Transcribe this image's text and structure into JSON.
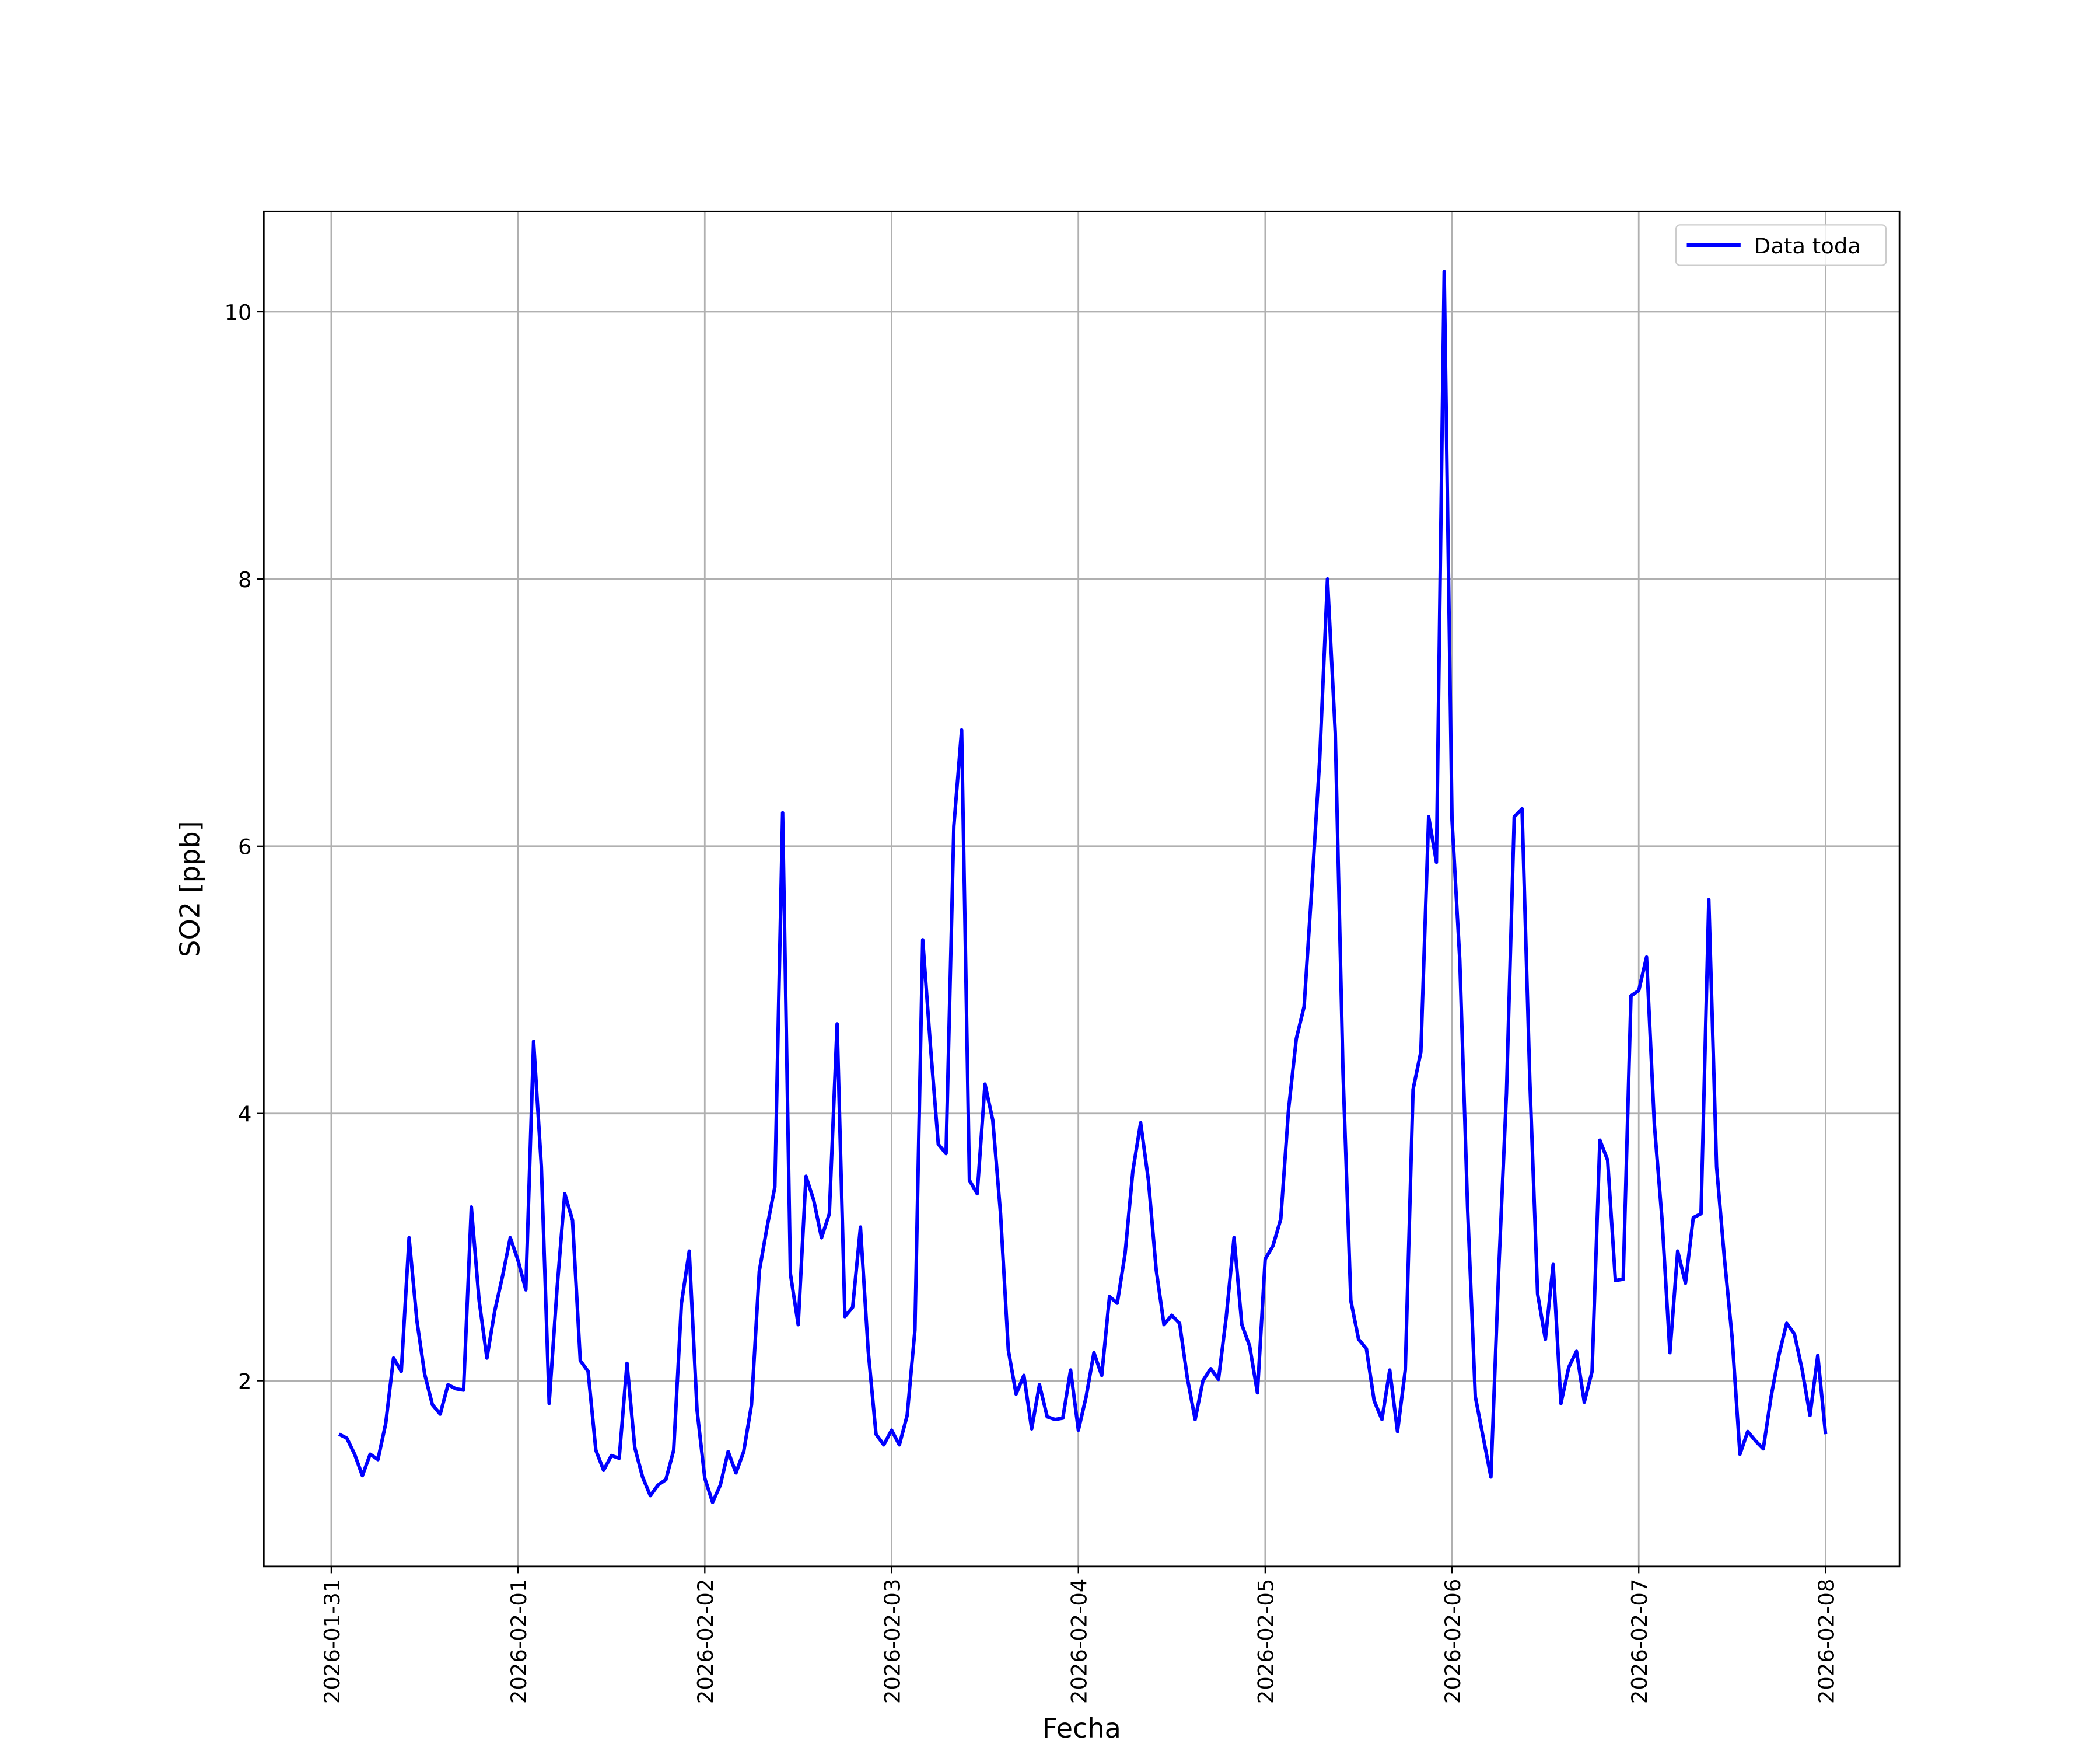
{
  "chart_data": {
    "type": "line",
    "x": [
      "2026-01-31 01:00",
      "2026-01-31 02:00",
      "2026-01-31 03:00",
      "2026-01-31 04:00",
      "2026-01-31 05:00",
      "2026-01-31 06:00",
      "2026-01-31 07:00",
      "2026-01-31 08:00",
      "2026-01-31 09:00",
      "2026-01-31 10:00",
      "2026-01-31 11:00",
      "2026-01-31 12:00",
      "2026-01-31 13:00",
      "2026-01-31 14:00",
      "2026-01-31 15:00",
      "2026-01-31 16:00",
      "2026-01-31 17:00",
      "2026-01-31 18:00",
      "2026-01-31 19:00",
      "2026-01-31 20:00",
      "2026-01-31 21:00",
      "2026-01-31 22:00",
      "2026-01-31 23:00",
      "2026-02-01 00:00",
      "2026-02-01 01:00",
      "2026-02-01 02:00",
      "2026-02-01 03:00",
      "2026-02-01 04:00",
      "2026-02-01 05:00",
      "2026-02-01 06:00",
      "2026-02-01 07:00",
      "2026-02-01 08:00",
      "2026-02-01 09:00",
      "2026-02-01 10:00",
      "2026-02-01 11:00",
      "2026-02-01 12:00",
      "2026-02-01 13:00",
      "2026-02-01 14:00",
      "2026-02-01 15:00",
      "2026-02-01 16:00",
      "2026-02-01 17:00",
      "2026-02-01 18:00",
      "2026-02-01 19:00",
      "2026-02-01 20:00",
      "2026-02-01 21:00",
      "2026-02-01 22:00",
      "2026-02-01 23:00",
      "2026-02-02 00:00",
      "2026-02-02 01:00",
      "2026-02-02 02:00",
      "2026-02-02 03:00",
      "2026-02-02 04:00",
      "2026-02-02 05:00",
      "2026-02-02 06:00",
      "2026-02-02 07:00",
      "2026-02-02 08:00",
      "2026-02-02 09:00",
      "2026-02-02 10:00",
      "2026-02-02 11:00",
      "2026-02-02 12:00",
      "2026-02-02 13:00",
      "2026-02-02 14:00",
      "2026-02-02 15:00",
      "2026-02-02 16:00",
      "2026-02-02 17:00",
      "2026-02-02 18:00",
      "2026-02-02 19:00",
      "2026-02-02 20:00",
      "2026-02-02 21:00",
      "2026-02-02 22:00",
      "2026-02-02 23:00",
      "2026-02-03 00:00",
      "2026-02-03 01:00",
      "2026-02-03 02:00",
      "2026-02-03 03:00",
      "2026-02-03 04:00",
      "2026-02-03 05:00",
      "2026-02-03 06:00",
      "2026-02-03 07:00",
      "2026-02-03 08:00",
      "2026-02-03 09:00",
      "2026-02-03 10:00",
      "2026-02-03 11:00",
      "2026-02-03 12:00",
      "2026-02-03 13:00",
      "2026-02-03 14:00",
      "2026-02-03 15:00",
      "2026-02-03 16:00",
      "2026-02-03 17:00",
      "2026-02-03 18:00",
      "2026-02-03 19:00",
      "2026-02-03 20:00",
      "2026-02-03 21:00",
      "2026-02-03 22:00",
      "2026-02-03 23:00",
      "2026-02-04 00:00",
      "2026-02-04 01:00",
      "2026-02-04 02:00",
      "2026-02-04 03:00",
      "2026-02-04 04:00",
      "2026-02-04 05:00",
      "2026-02-04 06:00",
      "2026-02-04 07:00",
      "2026-02-04 08:00",
      "2026-02-04 09:00",
      "2026-02-04 10:00",
      "2026-02-04 11:00",
      "2026-02-04 12:00",
      "2026-02-04 13:00",
      "2026-02-04 14:00",
      "2026-02-04 15:00",
      "2026-02-04 16:00",
      "2026-02-04 17:00",
      "2026-02-04 18:00",
      "2026-02-04 19:00",
      "2026-02-04 20:00",
      "2026-02-04 21:00",
      "2026-02-04 22:00",
      "2026-02-04 23:00",
      "2026-02-05 00:00",
      "2026-02-05 01:00",
      "2026-02-05 02:00",
      "2026-02-05 03:00",
      "2026-02-05 04:00",
      "2026-02-05 05:00",
      "2026-02-05 06:00",
      "2026-02-05 07:00",
      "2026-02-05 08:00",
      "2026-02-05 09:00",
      "2026-02-05 10:00",
      "2026-02-05 11:00",
      "2026-02-05 12:00",
      "2026-02-05 13:00",
      "2026-02-05 14:00",
      "2026-02-05 15:00",
      "2026-02-05 16:00",
      "2026-02-05 17:00",
      "2026-02-05 18:00",
      "2026-02-05 19:00",
      "2026-02-05 20:00",
      "2026-02-05 21:00",
      "2026-02-05 22:00",
      "2026-02-05 23:00",
      "2026-02-06 00:00",
      "2026-02-06 01:00",
      "2026-02-06 02:00",
      "2026-02-06 03:00",
      "2026-02-06 04:00",
      "2026-02-06 05:00",
      "2026-02-06 06:00",
      "2026-02-06 07:00",
      "2026-02-06 08:00",
      "2026-02-06 09:00",
      "2026-02-06 10:00",
      "2026-02-06 11:00",
      "2026-02-06 12:00",
      "2026-02-06 13:00",
      "2026-02-06 14:00",
      "2026-02-06 15:00",
      "2026-02-06 16:00",
      "2026-02-06 17:00",
      "2026-02-06 18:00",
      "2026-02-06 19:00",
      "2026-02-06 20:00",
      "2026-02-06 21:00",
      "2026-02-06 22:00",
      "2026-02-06 23:00",
      "2026-02-07 00:00",
      "2026-02-07 01:00",
      "2026-02-07 02:00",
      "2026-02-07 03:00",
      "2026-02-07 04:00",
      "2026-02-07 05:00",
      "2026-02-07 06:00",
      "2026-02-07 07:00",
      "2026-02-07 08:00",
      "2026-02-07 09:00",
      "2026-02-07 10:00",
      "2026-02-07 11:00",
      "2026-02-07 12:00",
      "2026-02-07 13:00",
      "2026-02-07 14:00",
      "2026-02-07 15:00",
      "2026-02-07 16:00",
      "2026-02-07 17:00",
      "2026-02-07 18:00",
      "2026-02-07 19:00",
      "2026-02-07 20:00",
      "2026-02-07 21:00",
      "2026-02-07 22:00",
      "2026-02-07 23:00",
      "2026-02-08 00:00"
    ],
    "series": [
      {
        "name": "Data toda",
        "color": "#0000ff",
        "values": [
          1.6,
          1.57,
          1.45,
          1.29,
          1.45,
          1.41,
          1.68,
          2.17,
          2.07,
          3.07,
          2.45,
          2.05,
          1.82,
          1.75,
          1.97,
          1.94,
          1.93,
          3.3,
          2.6,
          2.17,
          2.52,
          2.78,
          3.07,
          2.9,
          2.68,
          4.54,
          3.6,
          1.83,
          2.68,
          3.4,
          3.2,
          2.15,
          2.07,
          1.48,
          1.33,
          1.44,
          1.42,
          2.13,
          1.5,
          1.28,
          1.14,
          1.22,
          1.26,
          1.48,
          2.58,
          2.97,
          1.78,
          1.27,
          1.09,
          1.22,
          1.47,
          1.31,
          1.47,
          1.82,
          2.82,
          3.15,
          3.45,
          6.25,
          2.8,
          2.42,
          3.53,
          3.35,
          3.07,
          3.25,
          4.67,
          2.48,
          2.55,
          3.15,
          2.22,
          1.6,
          1.52,
          1.63,
          1.52,
          1.74,
          2.38,
          5.3,
          4.5,
          3.77,
          3.7,
          6.15,
          6.87,
          3.5,
          3.4,
          4.22,
          3.95,
          3.25,
          2.23,
          1.9,
          2.04,
          1.64,
          1.97,
          1.73,
          1.71,
          1.72,
          2.08,
          1.63,
          1.88,
          2.21,
          2.04,
          2.63,
          2.58,
          2.95,
          3.57,
          3.93,
          3.5,
          2.83,
          2.42,
          2.49,
          2.43,
          2.02,
          1.71,
          2.0,
          2.09,
          2.01,
          2.48,
          3.07,
          2.42,
          2.26,
          1.91,
          2.91,
          3.01,
          3.21,
          4.03,
          4.56,
          4.8,
          5.7,
          6.65,
          8.0,
          6.85,
          4.3,
          2.6,
          2.31,
          2.24,
          1.85,
          1.71,
          2.08,
          1.62,
          2.08,
          4.18,
          4.46,
          6.22,
          5.88,
          10.3,
          6.2,
          5.15,
          3.3,
          1.88,
          1.58,
          1.28,
          2.82,
          4.15,
          6.22,
          6.28,
          4.25,
          2.65,
          2.31,
          2.87,
          1.83,
          2.1,
          2.22,
          1.84,
          2.07,
          3.8,
          3.65,
          2.75,
          2.76,
          4.88,
          4.92,
          5.17,
          3.92,
          3.2,
          2.21,
          2.97,
          2.73,
          3.22,
          3.25,
          5.6,
          3.6,
          2.92,
          2.32,
          1.45,
          1.62,
          1.55,
          1.49,
          1.88,
          2.19,
          2.43,
          2.35,
          2.08,
          1.74,
          2.19,
          1.6
        ]
      }
    ],
    "xlabel": "Fecha",
    "ylabel": "SO2 [ppb]",
    "xlim": [
      "2026-01-30 15:20",
      "2026-02-08 09:30"
    ],
    "xticks": [
      "2026-01-31",
      "2026-02-01",
      "2026-02-02",
      "2026-02-03",
      "2026-02-04",
      "2026-02-05",
      "2026-02-06",
      "2026-02-07",
      "2026-02-08"
    ],
    "ylim": [
      0.61,
      10.75
    ],
    "yticks": [
      2,
      4,
      6,
      8,
      10
    ],
    "grid": true,
    "legend": "upper right"
  }
}
